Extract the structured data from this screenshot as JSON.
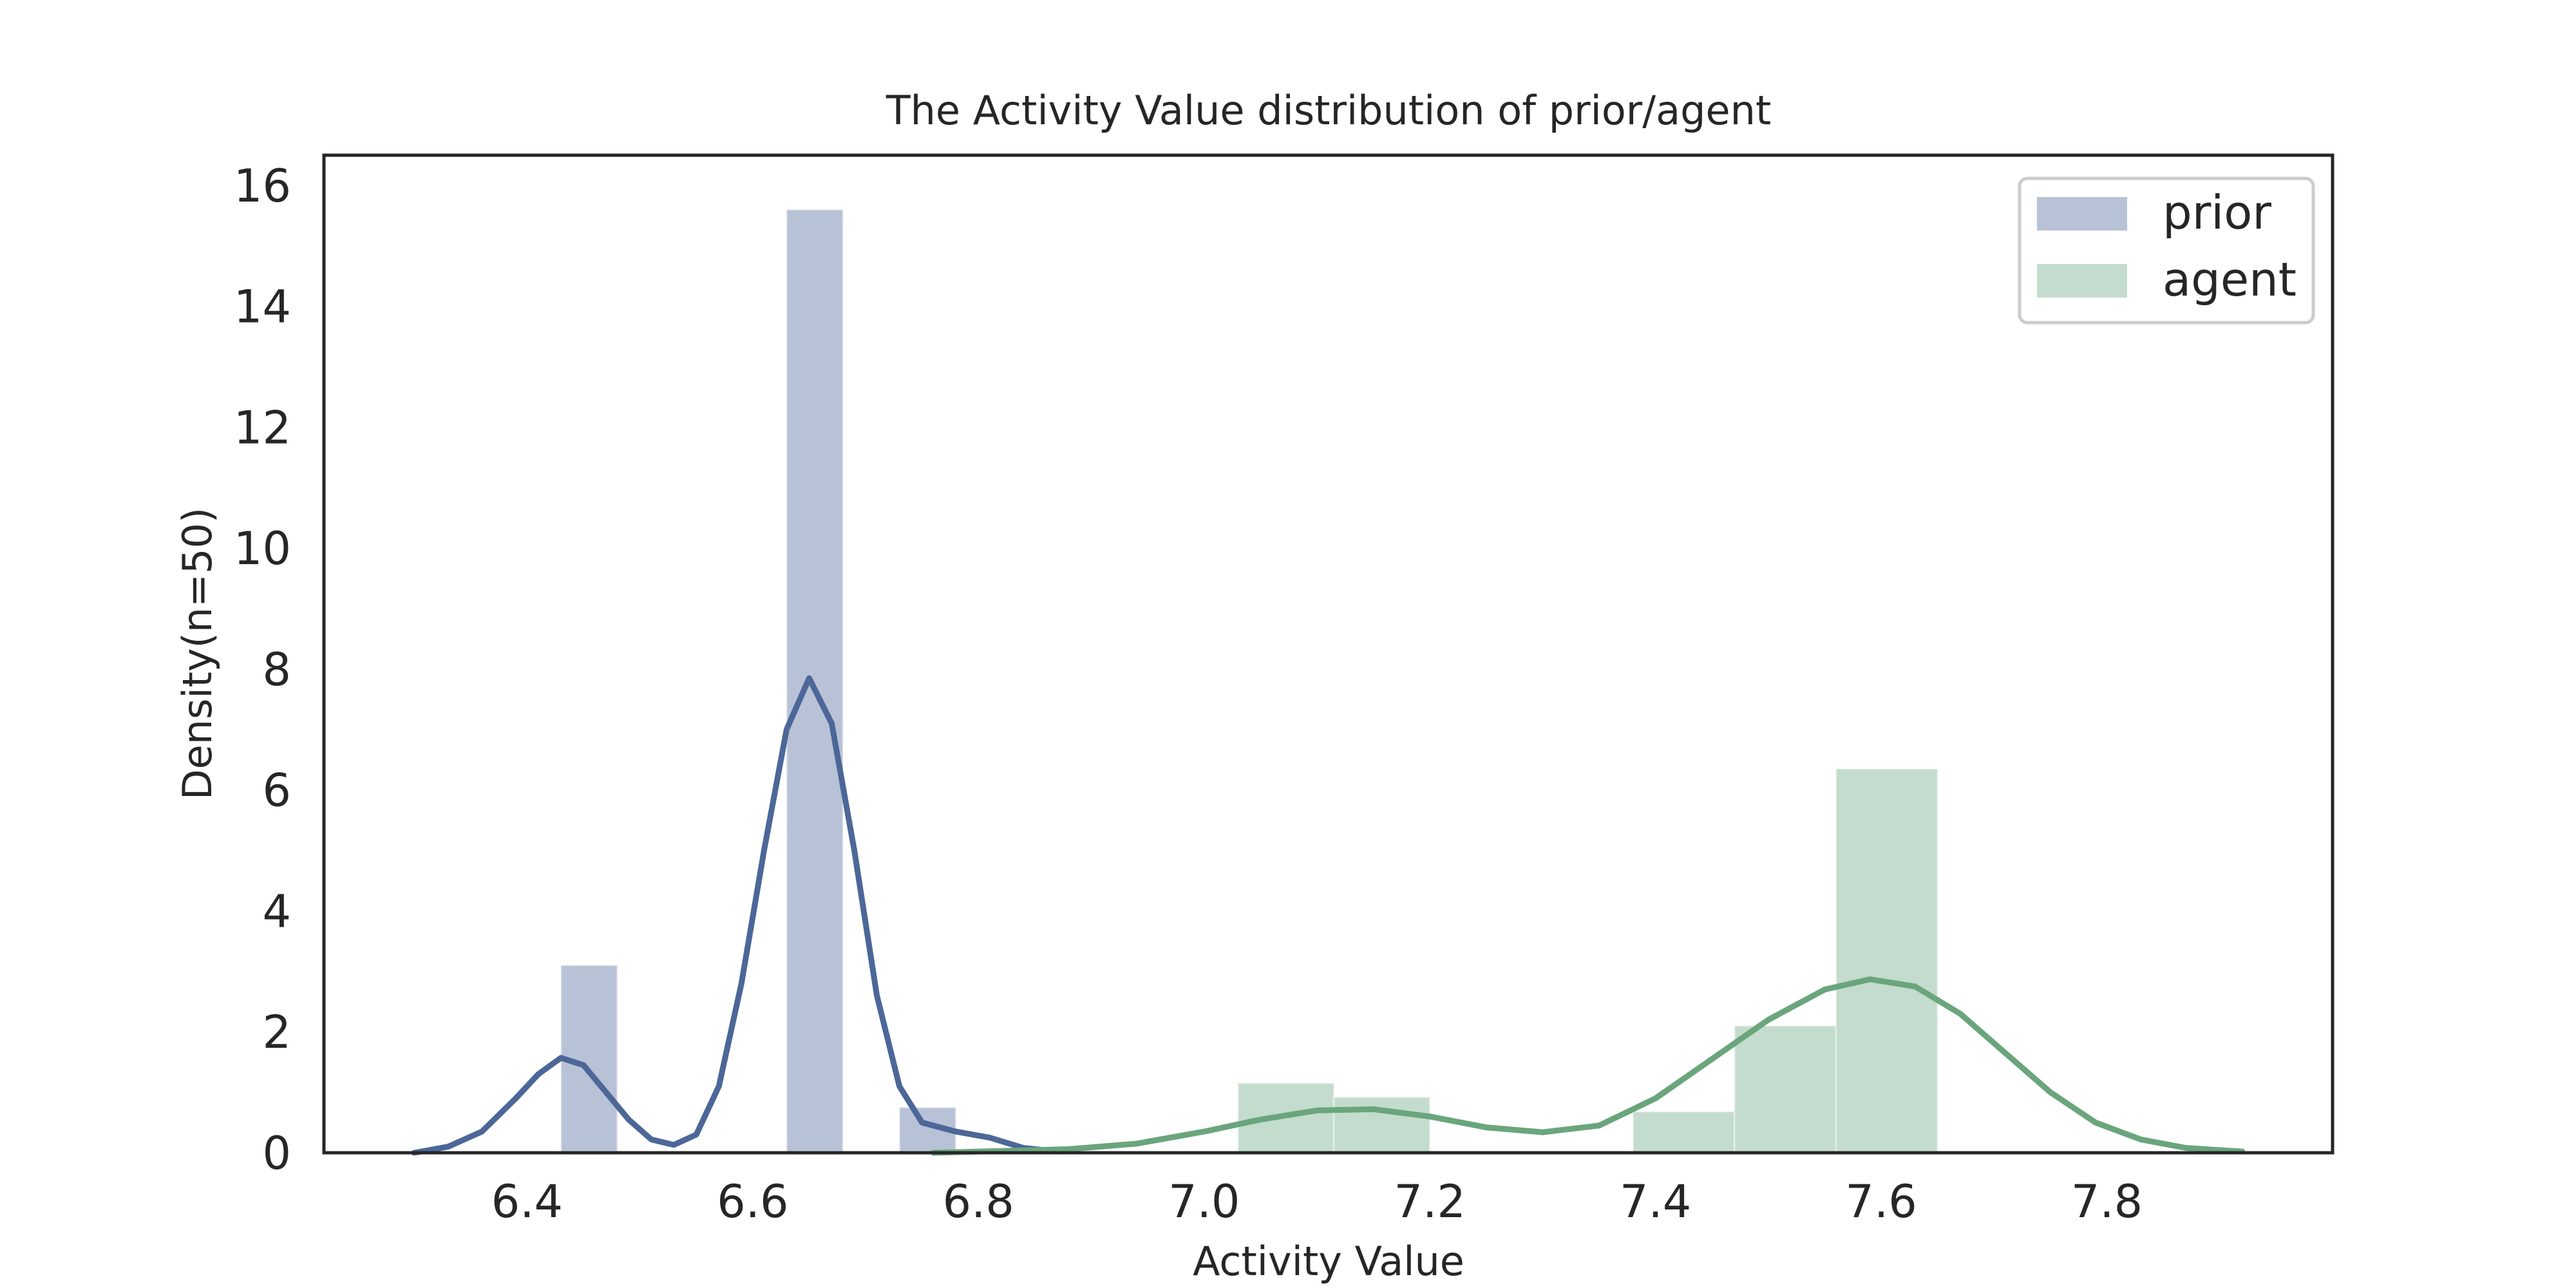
{
  "chart_data": {
    "type": "histogram+kde",
    "title": "The Activity Value distribution of prior/agent",
    "xlabel": "Activity Value",
    "ylabel": "Density(n=50)",
    "xlim": [
      6.22,
      8.0
    ],
    "ylim": [
      0,
      16.5
    ],
    "xticks": [
      6.4,
      6.6,
      6.8,
      7.0,
      7.2,
      7.4,
      7.6,
      7.8
    ],
    "xtick_labels": [
      "6.4",
      "6.6",
      "6.8",
      "7.0",
      "7.2",
      "7.4",
      "7.6",
      "7.8"
    ],
    "yticks": [
      0,
      2,
      4,
      6,
      8,
      10,
      12,
      14,
      16
    ],
    "ytick_labels": [
      "0",
      "2",
      "4",
      "6",
      "8",
      "10",
      "12",
      "14",
      "16"
    ],
    "grid": false,
    "legend": {
      "position": "top-right"
    },
    "series": [
      {
        "name": "prior",
        "bar_color": "#b8c2d6",
        "line_color": "#4c6798",
        "hist": [
          {
            "x0": 6.43,
            "x1": 6.48,
            "density": 3.1
          },
          {
            "x0": 6.48,
            "x1": 6.53,
            "density": 0
          },
          {
            "x0": 6.53,
            "x1": 6.58,
            "density": 0
          },
          {
            "x0": 6.58,
            "x1": 6.63,
            "density": 0
          },
          {
            "x0": 6.63,
            "x1": 6.68,
            "density": 15.6
          },
          {
            "x0": 6.68,
            "x1": 6.73,
            "density": 0
          },
          {
            "x0": 6.73,
            "x1": 6.78,
            "density": 0.75
          }
        ],
        "kde": [
          [
            6.3,
            0.0
          ],
          [
            6.33,
            0.1
          ],
          [
            6.36,
            0.35
          ],
          [
            6.39,
            0.9
          ],
          [
            6.41,
            1.3
          ],
          [
            6.43,
            1.57
          ],
          [
            6.45,
            1.45
          ],
          [
            6.47,
            1.0
          ],
          [
            6.49,
            0.55
          ],
          [
            6.51,
            0.22
          ],
          [
            6.53,
            0.13
          ],
          [
            6.55,
            0.3
          ],
          [
            6.57,
            1.1
          ],
          [
            6.59,
            2.8
          ],
          [
            6.61,
            5.0
          ],
          [
            6.63,
            7.0
          ],
          [
            6.65,
            7.85
          ],
          [
            6.67,
            7.1
          ],
          [
            6.69,
            5.0
          ],
          [
            6.71,
            2.6
          ],
          [
            6.73,
            1.1
          ],
          [
            6.75,
            0.5
          ],
          [
            6.78,
            0.35
          ],
          [
            6.81,
            0.25
          ],
          [
            6.84,
            0.08
          ],
          [
            6.87,
            0.02
          ]
        ]
      },
      {
        "name": "agent",
        "bar_color": "#c3dccd",
        "line_color": "#6aa57c",
        "hist": [
          {
            "x0": 7.03,
            "x1": 7.115,
            "density": 1.15
          },
          {
            "x0": 7.115,
            "x1": 7.2,
            "density": 0.92
          },
          {
            "x0": 7.2,
            "x1": 7.29,
            "density": 0
          },
          {
            "x0": 7.29,
            "x1": 7.38,
            "density": 0
          },
          {
            "x0": 7.38,
            "x1": 7.47,
            "density": 0.68
          },
          {
            "x0": 7.47,
            "x1": 7.56,
            "density": 2.1
          },
          {
            "x0": 7.56,
            "x1": 7.65,
            "density": 6.35
          }
        ],
        "kde": [
          [
            6.76,
            0.0
          ],
          [
            6.82,
            0.03
          ],
          [
            6.88,
            0.06
          ],
          [
            6.94,
            0.15
          ],
          [
            7.0,
            0.35
          ],
          [
            7.05,
            0.55
          ],
          [
            7.1,
            0.7
          ],
          [
            7.15,
            0.72
          ],
          [
            7.2,
            0.6
          ],
          [
            7.25,
            0.42
          ],
          [
            7.3,
            0.34
          ],
          [
            7.35,
            0.45
          ],
          [
            7.4,
            0.9
          ],
          [
            7.45,
            1.55
          ],
          [
            7.5,
            2.2
          ],
          [
            7.55,
            2.7
          ],
          [
            7.59,
            2.87
          ],
          [
            7.63,
            2.75
          ],
          [
            7.67,
            2.3
          ],
          [
            7.71,
            1.65
          ],
          [
            7.75,
            1.0
          ],
          [
            7.79,
            0.5
          ],
          [
            7.83,
            0.22
          ],
          [
            7.87,
            0.08
          ],
          [
            7.92,
            0.02
          ]
        ]
      }
    ]
  }
}
